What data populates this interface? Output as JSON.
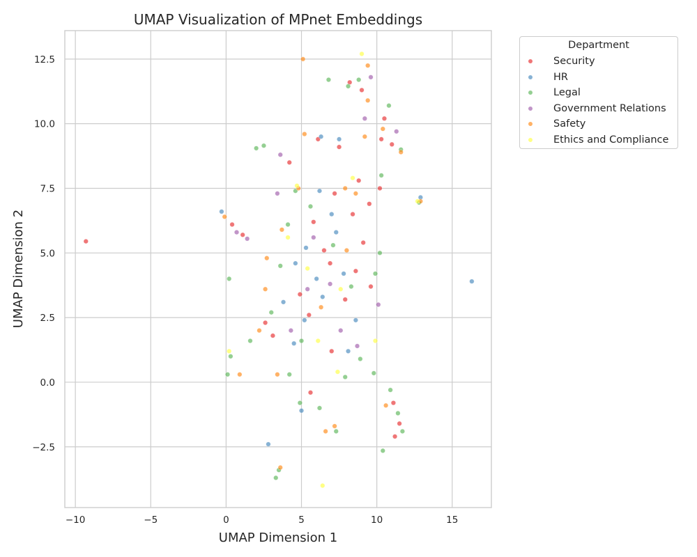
{
  "chart_data": {
    "type": "scatter",
    "title": "UMAP Visualization of MPnet Embeddings",
    "xlabel": "UMAP Dimension 1",
    "ylabel": "UMAP Dimension 2",
    "xlim": [
      -10.7,
      17.6
    ],
    "ylim": [
      -4.85,
      13.6
    ],
    "xticks": [
      -10,
      -5,
      0,
      5,
      10,
      15
    ],
    "xtick_labels": [
      "−10",
      "−5",
      "0",
      "5",
      "10",
      "15"
    ],
    "yticks": [
      -2.5,
      0,
      2.5,
      5,
      7.5,
      10,
      12.5
    ],
    "ytick_labels": [
      "−2.5",
      "0.0",
      "2.5",
      "5.0",
      "7.5",
      "10.0",
      "12.5"
    ],
    "grid": true,
    "legend": {
      "title": "Department",
      "placement": "outside-top-right"
    },
    "series": [
      {
        "name": "Security",
        "color": "#e41a1c",
        "points": [
          [
            -9.3,
            5.45
          ],
          [
            7.5,
            9.1
          ],
          [
            8.2,
            11.6
          ],
          [
            9.0,
            11.3
          ],
          [
            10.3,
            9.4
          ],
          [
            11.0,
            9.2
          ],
          [
            10.5,
            10.2
          ],
          [
            7.2,
            7.3
          ],
          [
            8.4,
            6.5
          ],
          [
            9.1,
            5.4
          ],
          [
            8.6,
            4.3
          ],
          [
            9.6,
            3.7
          ],
          [
            6.5,
            5.1
          ],
          [
            5.8,
            6.2
          ],
          [
            7.9,
            3.2
          ],
          [
            4.2,
            8.5
          ],
          [
            6.1,
            9.4
          ],
          [
            11.1,
            -0.8
          ],
          [
            11.5,
            -1.6
          ],
          [
            11.2,
            -2.1
          ],
          [
            0.4,
            6.1
          ],
          [
            1.1,
            5.7
          ],
          [
            2.6,
            2.3
          ],
          [
            3.1,
            1.8
          ],
          [
            5.6,
            -0.4
          ],
          [
            7.0,
            1.2
          ],
          [
            8.8,
            7.8
          ],
          [
            9.5,
            6.9
          ],
          [
            10.2,
            7.5
          ],
          [
            4.9,
            3.4
          ],
          [
            6.9,
            4.6
          ],
          [
            5.5,
            2.6
          ]
        ]
      },
      {
        "name": "HR",
        "color": "#377eb8",
        "points": [
          [
            16.3,
            3.9
          ],
          [
            -0.3,
            6.6
          ],
          [
            12.9,
            7.15
          ],
          [
            6.3,
            9.5
          ],
          [
            7.5,
            9.4
          ],
          [
            6.2,
            7.4
          ],
          [
            7.0,
            6.5
          ],
          [
            5.3,
            5.2
          ],
          [
            4.6,
            4.6
          ],
          [
            6.0,
            4.0
          ],
          [
            5.2,
            2.4
          ],
          [
            4.5,
            1.5
          ],
          [
            5.0,
            -1.1
          ],
          [
            8.1,
            1.2
          ],
          [
            6.4,
            3.3
          ],
          [
            7.3,
            5.8
          ],
          [
            3.8,
            3.1
          ],
          [
            2.8,
            -2.4
          ],
          [
            8.6,
            2.4
          ],
          [
            7.8,
            4.2
          ]
        ]
      },
      {
        "name": "Legal",
        "color": "#4daf4a",
        "points": [
          [
            6.8,
            11.7
          ],
          [
            8.1,
            11.45
          ],
          [
            8.8,
            11.7
          ],
          [
            10.8,
            10.7
          ],
          [
            11.6,
            9.0
          ],
          [
            10.3,
            8.0
          ],
          [
            4.6,
            7.4
          ],
          [
            4.1,
            6.1
          ],
          [
            5.6,
            6.8
          ],
          [
            7.1,
            5.3
          ],
          [
            8.3,
            3.7
          ],
          [
            5.0,
            1.6
          ],
          [
            4.2,
            0.3
          ],
          [
            4.9,
            -0.8
          ],
          [
            6.2,
            -1.0
          ],
          [
            7.3,
            -1.9
          ],
          [
            7.9,
            0.2
          ],
          [
            8.9,
            0.9
          ],
          [
            10.9,
            -0.3
          ],
          [
            11.4,
            -1.2
          ],
          [
            11.7,
            -1.9
          ],
          [
            2.0,
            9.05
          ],
          [
            2.5,
            9.15
          ],
          [
            3.3,
            -3.7
          ],
          [
            3.5,
            -3.4
          ],
          [
            0.2,
            4.0
          ],
          [
            0.1,
            0.3
          ],
          [
            0.3,
            1.0
          ],
          [
            1.6,
            1.6
          ],
          [
            3.0,
            2.7
          ],
          [
            9.9,
            4.2
          ],
          [
            10.2,
            5.0
          ],
          [
            10.4,
            -2.65
          ],
          [
            12.8,
            6.95
          ],
          [
            3.6,
            4.5
          ],
          [
            9.8,
            0.35
          ]
        ]
      },
      {
        "name": "Government Relations",
        "color": "#984ea3",
        "points": [
          [
            9.6,
            11.8
          ],
          [
            3.6,
            8.8
          ],
          [
            1.4,
            5.55
          ],
          [
            0.7,
            5.8
          ],
          [
            5.8,
            5.6
          ],
          [
            7.6,
            2.0
          ],
          [
            8.7,
            1.4
          ],
          [
            6.9,
            3.8
          ],
          [
            4.3,
            2.0
          ],
          [
            3.4,
            7.3
          ],
          [
            9.2,
            10.2
          ],
          [
            11.3,
            9.7
          ],
          [
            10.1,
            3.0
          ],
          [
            5.4,
            3.6
          ]
        ]
      },
      {
        "name": "Safety",
        "color": "#ff7f00",
        "points": [
          [
            5.1,
            12.5
          ],
          [
            9.4,
            12.25
          ],
          [
            9.4,
            10.9
          ],
          [
            9.2,
            9.5
          ],
          [
            8.6,
            7.3
          ],
          [
            7.9,
            7.5
          ],
          [
            5.2,
            9.6
          ],
          [
            4.8,
            7.5
          ],
          [
            3.7,
            5.9
          ],
          [
            2.7,
            4.8
          ],
          [
            2.6,
            3.6
          ],
          [
            2.2,
            2.0
          ],
          [
            3.4,
            0.3
          ],
          [
            6.6,
            -1.9
          ],
          [
            7.2,
            -1.7
          ],
          [
            10.6,
            -0.9
          ],
          [
            12.9,
            7.0
          ],
          [
            -0.1,
            6.4
          ],
          [
            3.6,
            -3.3
          ],
          [
            0.9,
            0.3
          ],
          [
            6.3,
            2.9
          ],
          [
            8.0,
            5.1
          ],
          [
            10.4,
            9.8
          ],
          [
            11.6,
            8.9
          ]
        ]
      },
      {
        "name": "Ethics and Compliance",
        "color": "#ffff33",
        "points": [
          [
            9.0,
            12.7
          ],
          [
            6.4,
            -4.0
          ],
          [
            4.1,
            5.6
          ],
          [
            5.4,
            4.4
          ],
          [
            7.6,
            3.6
          ],
          [
            9.9,
            1.6
          ],
          [
            8.4,
            7.9
          ],
          [
            0.2,
            1.2
          ],
          [
            6.1,
            1.6
          ],
          [
            4.7,
            7.6
          ],
          [
            12.7,
            7.0
          ],
          [
            7.4,
            0.4
          ]
        ]
      }
    ]
  }
}
